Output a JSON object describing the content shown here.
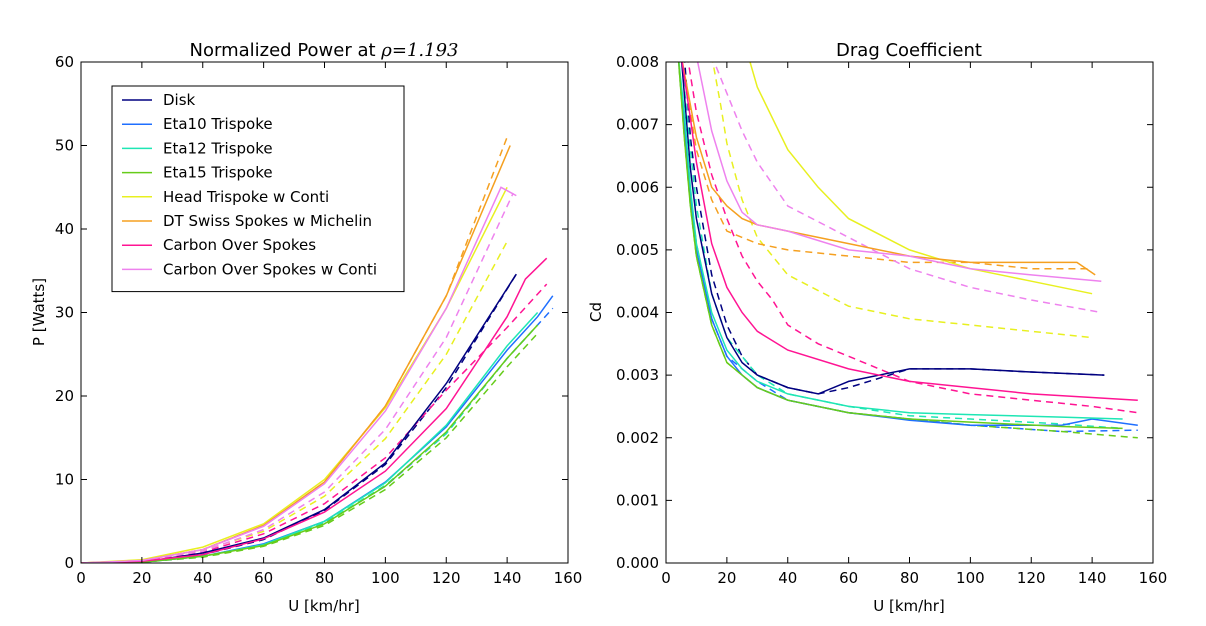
{
  "chart_data": [
    {
      "type": "line",
      "title_main": "Normalized Power at ",
      "title_math": "ρ=1.193",
      "xlabel": "U [km/hr]",
      "ylabel": "P [Watts]",
      "xlim": [
        0,
        160
      ],
      "ylim": [
        0,
        60
      ],
      "xticks": [
        "0",
        "20",
        "40",
        "60",
        "80",
        "100",
        "120",
        "140",
        "160"
      ],
      "yticks": [
        "0",
        "10",
        "20",
        "30",
        "40",
        "50",
        "60"
      ],
      "legend_position": "upper-left",
      "series": [
        {
          "name": "Disk",
          "color": "#000080",
          "x": [
            0,
            20,
            40,
            60,
            80,
            100,
            120,
            143
          ],
          "y": [
            0,
            0.1,
            1.2,
            3.0,
            6.4,
            12.0,
            21.5,
            34.6
          ]
        },
        {
          "name": "Eta10 Trispoke",
          "color": "#1f6fff",
          "x": [
            0,
            20,
            40,
            60,
            80,
            100,
            120,
            140,
            150,
            155
          ],
          "y": [
            0,
            0.1,
            0.8,
            2.3,
            5.0,
            9.7,
            16.3,
            25.5,
            29.5,
            32.0
          ]
        },
        {
          "name": "Eta12 Trispoke",
          "color": "#1ee6b4",
          "x": [
            0,
            20,
            40,
            60,
            80,
            100,
            120,
            140,
            150
          ],
          "y": [
            0,
            0.1,
            0.8,
            2.2,
            5.0,
            9.6,
            16.5,
            26.0,
            30.0
          ]
        },
        {
          "name": "Eta15 Trispoke",
          "color": "#66cc1a",
          "x": [
            0,
            20,
            40,
            60,
            80,
            100,
            120,
            140,
            150
          ],
          "y": [
            0,
            0.1,
            0.8,
            2.1,
            4.7,
            9.2,
            15.7,
            24.5,
            28.5
          ]
        },
        {
          "name": "Head Trispoke w Conti",
          "color": "#e8f020",
          "x": [
            0,
            20,
            40,
            60,
            80,
            100,
            120,
            140
          ],
          "y": [
            0,
            0.4,
            1.9,
            4.7,
            10.0,
            18.6,
            30.5,
            45.0
          ]
        },
        {
          "name": "DT Swiss Spokes w Michelin",
          "color": "#f5a020",
          "x": [
            0,
            20,
            40,
            60,
            80,
            100,
            120,
            141
          ],
          "y": [
            0,
            0.3,
            1.6,
            4.5,
            9.7,
            18.8,
            32.0,
            50.0
          ]
        },
        {
          "name": "Carbon Over Spokes",
          "color": "#ff1493",
          "x": [
            0,
            20,
            40,
            60,
            80,
            100,
            120,
            140,
            146,
            153
          ],
          "y": [
            0,
            0.2,
            1.0,
            2.9,
            6.1,
            11.0,
            18.5,
            29.5,
            34.0,
            36.5
          ]
        },
        {
          "name": "Carbon Over Spokes w Conti",
          "color": "#ee82ee",
          "x": [
            0,
            20,
            40,
            60,
            80,
            100,
            120,
            138,
            143
          ],
          "y": [
            0,
            0.3,
            1.6,
            4.4,
            9.5,
            18.2,
            30.5,
            45.0,
            44.0
          ]
        }
      ],
      "dashed_series": [
        {
          "color": "#000080",
          "x": [
            0,
            20,
            40,
            60,
            80,
            100,
            120,
            143
          ],
          "y": [
            0,
            0.1,
            1.0,
            2.8,
            6.3,
            11.8,
            21.0,
            34.6
          ]
        },
        {
          "color": "#1f6fff",
          "x": [
            0,
            20,
            40,
            60,
            80,
            100,
            120,
            140,
            155
          ],
          "y": [
            0,
            0.1,
            0.8,
            2.2,
            4.8,
            9.2,
            15.5,
            24.5,
            30.5
          ]
        },
        {
          "color": "#1ee6b4",
          "x": [
            0,
            20,
            40,
            60,
            80,
            100,
            120,
            140,
            150
          ],
          "y": [
            0,
            0.1,
            0.8,
            2.2,
            4.8,
            9.3,
            15.5,
            24.5,
            28.5
          ]
        },
        {
          "color": "#66cc1a",
          "x": [
            0,
            20,
            40,
            60,
            80,
            100,
            120,
            140,
            150
          ],
          "y": [
            0,
            0.1,
            0.7,
            2.0,
            4.5,
            8.8,
            15.0,
            23.5,
            27.5
          ]
        },
        {
          "color": "#e8f020",
          "x": [
            0,
            20,
            40,
            60,
            80,
            100,
            120,
            140
          ],
          "y": [
            0,
            0.3,
            1.5,
            3.8,
            8.0,
            14.9,
            25.0,
            38.5
          ]
        },
        {
          "color": "#f5a020",
          "x": [
            0,
            20,
            40,
            60,
            80,
            100,
            120,
            140
          ],
          "y": [
            0,
            0.3,
            1.6,
            4.5,
            9.7,
            18.8,
            32.0,
            51.0
          ]
        },
        {
          "color": "#ff1493",
          "x": [
            0,
            20,
            40,
            60,
            80,
            100,
            120,
            140,
            153
          ],
          "y": [
            0,
            0.2,
            1.3,
            3.5,
            7.1,
            12.6,
            20.7,
            28.2,
            33.4
          ]
        },
        {
          "color": "#ee82ee",
          "x": [
            0,
            20,
            40,
            60,
            80,
            100,
            120,
            142
          ],
          "y": [
            0,
            0.3,
            1.4,
            4.0,
            8.5,
            16.0,
            27.0,
            44.3
          ]
        }
      ]
    },
    {
      "type": "line",
      "title_main": "Drag Coefficient",
      "xlabel": "U [km/hr]",
      "ylabel": "Cd",
      "xlim": [
        0,
        160
      ],
      "ylim": [
        0,
        0.008
      ],
      "xticks": [
        "0",
        "20",
        "40",
        "60",
        "80",
        "100",
        "120",
        "140",
        "160"
      ],
      "yticks": [
        "0.000",
        "0.001",
        "0.002",
        "0.003",
        "0.004",
        "0.005",
        "0.006",
        "0.007",
        "0.008"
      ],
      "series": [
        {
          "name": "Disk",
          "color": "#000080",
          "x": [
            5,
            8,
            10,
            15,
            20,
            25,
            30,
            40,
            50,
            60,
            80,
            100,
            120,
            144
          ],
          "y": [
            0.0081,
            0.0063,
            0.0055,
            0.0043,
            0.0036,
            0.0032,
            0.003,
            0.0028,
            0.0027,
            0.0029,
            0.0031,
            0.0031,
            0.00305,
            0.003
          ]
        },
        {
          "name": "Eta10 Trispoke",
          "color": "#1f6fff",
          "x": [
            4,
            6,
            8,
            10,
            15,
            20,
            25,
            30,
            40,
            60,
            80,
            100,
            130,
            140,
            155
          ],
          "y": [
            0.0081,
            0.007,
            0.0058,
            0.005,
            0.0039,
            0.0033,
            0.003,
            0.0028,
            0.0026,
            0.0024,
            0.00228,
            0.0022,
            0.0022,
            0.0023,
            0.0022
          ]
        },
        {
          "name": "Eta12 Trispoke",
          "color": "#1ee6b4",
          "x": [
            4,
            6,
            8,
            10,
            15,
            20,
            25,
            30,
            40,
            60,
            80,
            100,
            130,
            150
          ],
          "y": [
            0.0081,
            0.0072,
            0.006,
            0.0051,
            0.004,
            0.0034,
            0.0031,
            0.0029,
            0.0027,
            0.0025,
            0.0024,
            0.00237,
            0.00233,
            0.0023
          ]
        },
        {
          "name": "Eta15 Trispoke",
          "color": "#66cc1a",
          "x": [
            4,
            6,
            8,
            10,
            15,
            20,
            25,
            30,
            40,
            60,
            80,
            100,
            130,
            150
          ],
          "y": [
            0.0081,
            0.0068,
            0.0057,
            0.0049,
            0.0038,
            0.0032,
            0.003,
            0.0028,
            0.0026,
            0.0024,
            0.0023,
            0.00225,
            0.00218,
            0.00215
          ]
        },
        {
          "name": "Head Trispoke w Conti",
          "color": "#e8f020",
          "x": [
            27,
            30,
            40,
            50,
            60,
            80,
            100,
            120,
            140
          ],
          "y": [
            0.0081,
            0.0076,
            0.0066,
            0.006,
            0.0055,
            0.005,
            0.0047,
            0.0045,
            0.0043
          ]
        },
        {
          "name": "DT Swiss Spokes w Michelin",
          "color": "#f5a020",
          "x": [
            5,
            10,
            15,
            20,
            25,
            30,
            40,
            60,
            80,
            100,
            120,
            135,
            141
          ],
          "y": [
            0.0081,
            0.0068,
            0.006,
            0.0057,
            0.0055,
            0.0054,
            0.0053,
            0.0051,
            0.0049,
            0.0048,
            0.0048,
            0.0048,
            0.0046
          ]
        },
        {
          "name": "Carbon Over Spokes",
          "color": "#ff1493",
          "x": [
            5,
            8,
            10,
            15,
            20,
            25,
            30,
            40,
            60,
            80,
            100,
            120,
            155
          ],
          "y": [
            0.0081,
            0.0071,
            0.0064,
            0.0051,
            0.0044,
            0.004,
            0.0037,
            0.0034,
            0.0031,
            0.0029,
            0.0028,
            0.0027,
            0.0026
          ]
        },
        {
          "name": "Carbon Over Spokes w Conti",
          "color": "#ee82ee",
          "x": [
            10,
            15,
            20,
            25,
            30,
            40,
            60,
            80,
            100,
            120,
            143
          ],
          "y": [
            0.0081,
            0.0069,
            0.0061,
            0.0056,
            0.0054,
            0.0053,
            0.005,
            0.0049,
            0.0047,
            0.0046,
            0.0045
          ]
        }
      ],
      "dashed_series": [
        {
          "color": "#000080",
          "x": [
            6,
            8,
            10,
            15,
            20,
            25,
            30,
            40,
            50,
            60,
            80,
            100,
            120,
            144
          ],
          "y": [
            0.0081,
            0.0068,
            0.006,
            0.0046,
            0.0038,
            0.0033,
            0.003,
            0.0028,
            0.0027,
            0.0028,
            0.0031,
            0.0031,
            0.00305,
            0.003
          ]
        },
        {
          "color": "#1f6fff",
          "x": [
            4,
            6,
            8,
            10,
            15,
            20,
            30,
            40,
            60,
            80,
            100,
            130,
            155
          ],
          "y": [
            0.0081,
            0.007,
            0.0059,
            0.0051,
            0.0039,
            0.0033,
            0.0029,
            0.0026,
            0.0024,
            0.0023,
            0.0022,
            0.0021,
            0.00212
          ]
        },
        {
          "color": "#1ee6b4",
          "x": [
            5,
            8,
            10,
            15,
            20,
            30,
            40,
            60,
            80,
            100,
            130,
            150
          ],
          "y": [
            0.0081,
            0.0066,
            0.0057,
            0.0043,
            0.0036,
            0.003,
            0.0027,
            0.0025,
            0.00235,
            0.0023,
            0.00222,
            0.00215
          ]
        },
        {
          "color": "#66cc1a",
          "x": [
            4,
            6,
            8,
            10,
            15,
            20,
            30,
            40,
            60,
            80,
            100,
            130,
            155
          ],
          "y": [
            0.0081,
            0.0068,
            0.0057,
            0.0049,
            0.0038,
            0.0032,
            0.0028,
            0.0026,
            0.0024,
            0.0023,
            0.0022,
            0.0021,
            0.002
          ]
        },
        {
          "color": "#e8f020",
          "x": [
            15,
            18,
            20,
            25,
            30,
            40,
            60,
            80,
            100,
            120,
            140
          ],
          "y": [
            0.0081,
            0.0073,
            0.0067,
            0.0058,
            0.0052,
            0.0046,
            0.0041,
            0.0039,
            0.0038,
            0.0037,
            0.0036
          ]
        },
        {
          "color": "#f5a020",
          "x": [
            5,
            10,
            15,
            20,
            25,
            30,
            40,
            60,
            80,
            100,
            120,
            140
          ],
          "y": [
            0.0081,
            0.0066,
            0.0058,
            0.0053,
            0.0052,
            0.0051,
            0.005,
            0.0049,
            0.0048,
            0.0048,
            0.0047,
            0.0047
          ]
        },
        {
          "color": "#ff1493",
          "x": [
            7,
            10,
            15,
            20,
            25,
            30,
            35,
            40,
            50,
            60,
            80,
            100,
            120,
            140,
            155
          ],
          "y": [
            0.0081,
            0.0072,
            0.0062,
            0.0055,
            0.0049,
            0.0045,
            0.0042,
            0.0038,
            0.0035,
            0.0033,
            0.0029,
            0.0027,
            0.0026,
            0.0025,
            0.0024
          ]
        },
        {
          "color": "#ee82ee",
          "x": [
            15,
            20,
            25,
            30,
            40,
            60,
            80,
            100,
            120,
            143
          ],
          "y": [
            0.0081,
            0.0075,
            0.0069,
            0.0064,
            0.0057,
            0.0052,
            0.0047,
            0.0044,
            0.0042,
            0.004
          ]
        }
      ]
    }
  ]
}
